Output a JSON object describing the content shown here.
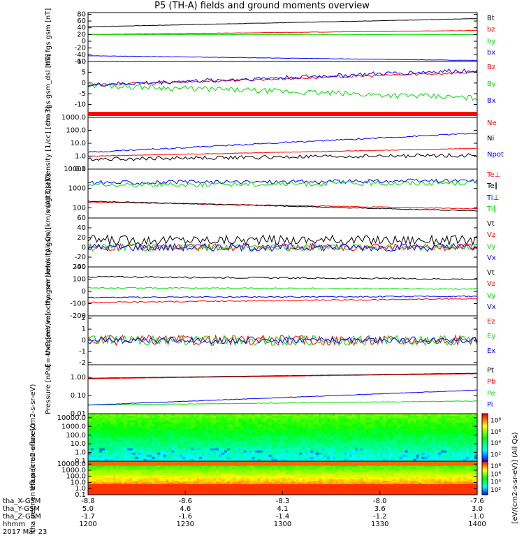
{
  "title": "P5 (TH-A) fields and ground moments overview",
  "colors": {
    "black": "#000000",
    "red": "#ff0000",
    "green": "#00dd00",
    "blue": "#0000ff"
  },
  "chart_data": [
    {
      "type": "line",
      "ylabel": "tha fgs gsm [nT]",
      "yticks": [
        "80",
        "60",
        "40",
        "20",
        "0",
        "-20",
        "-40",
        "-60"
      ],
      "ylim": [
        -60,
        85
      ],
      "series": [
        {
          "name": "Bt",
          "color": "black",
          "start": 43,
          "end": 67,
          "noise": 0.5
        },
        {
          "name": "bz",
          "color": "red",
          "start": 20,
          "end": 32,
          "noise": 0.5
        },
        {
          "name": "by",
          "color": "green",
          "start": 20,
          "end": 20,
          "noise": 0.6
        },
        {
          "name": "bx",
          "color": "blue",
          "start": -43,
          "end": -57,
          "noise": 0.5
        }
      ]
    },
    {
      "type": "line",
      "ylabel": "tha fgs gsm_dsl [nT]",
      "yticks": [
        "10",
        "5",
        "0",
        "-5",
        "-10"
      ],
      "ylim": [
        -16,
        10
      ],
      "series": [
        {
          "name": "Bz",
          "color": "red",
          "start": -1,
          "end": 5,
          "noise": 0.6
        },
        {
          "name": "By",
          "color": "green",
          "start": -1,
          "end": -7,
          "noise": 1.3
        },
        {
          "name": "Bx",
          "color": "blue",
          "start": -1,
          "end": 6,
          "noise": 1.0
        }
      ]
    },
    {
      "type": "line",
      "ylabel": "Density [1/cc] [cm-3]",
      "yticks": [
        "1000.0",
        "100.0",
        "10.0",
        "1.0",
        "0.1"
      ],
      "ylim": [
        0.1,
        1000
      ],
      "log": true,
      "series": [
        {
          "name": "Ne",
          "color": "red",
          "start": 1.0,
          "end": 4,
          "noise": 0.05
        },
        {
          "name": "Ni",
          "color": "black",
          "start": 0.6,
          "end": 1.2,
          "noise": 0.35
        },
        {
          "name": "Npot",
          "color": "blue",
          "start": 2,
          "end": 60,
          "noise": 0.12
        }
      ]
    },
    {
      "type": "line",
      "ylabel": "magt3 [eV]",
      "yticks": [
        "10000",
        "1000",
        "100"
      ],
      "ylim": [
        30,
        10000
      ],
      "log": true,
      "series": [
        {
          "name": "Te⊥",
          "color": "red",
          "start": 200,
          "end": 90,
          "noise": 0.05
        },
        {
          "name": "Te∥",
          "color": "black",
          "start": 220,
          "end": 70,
          "noise": 0.05
        },
        {
          "name": "Ti⊥",
          "color": "blue",
          "start": 2000,
          "end": 2500,
          "noise": 0.25
        },
        {
          "name": "Ti∥",
          "color": "green",
          "start": 1500,
          "end": 2000,
          "noise": 0.3
        }
      ]
    },
    {
      "type": "line",
      "ylabel": "tha peir velocity gsm [km/s (All Qs)]",
      "yticks": [
        "60",
        "40",
        "20",
        "0",
        "-20",
        "-40"
      ],
      "ylim": [
        -40,
        60
      ],
      "series": [
        {
          "name": "Vt",
          "color": "black",
          "start": 15,
          "end": 15,
          "noise": 10
        },
        {
          "name": "Vz",
          "color": "red",
          "start": 0,
          "end": 0,
          "noise": 7
        },
        {
          "name": "Vy",
          "color": "green",
          "start": 0,
          "end": 0,
          "noise": 7
        },
        {
          "name": "Vx",
          "color": "blue",
          "start": 0,
          "end": 0,
          "noise": 8
        }
      ]
    },
    {
      "type": "line",
      "ylabel": "tha peer velocity gsm [km/s (All Qs)]",
      "yticks": [
        "200",
        "100",
        "0",
        "-100",
        "-200"
      ],
      "ylim": [
        -200,
        200
      ],
      "series": [
        {
          "name": "Vt",
          "color": "black",
          "start": 120,
          "end": 100,
          "noise": 6
        },
        {
          "name": "Vz",
          "color": "red",
          "start": -90,
          "end": -60,
          "noise": 5
        },
        {
          "name": "Vy",
          "color": "green",
          "start": 30,
          "end": 20,
          "noise": 5
        },
        {
          "name": "Vx",
          "color": "blue",
          "start": -50,
          "end": -40,
          "noise": 5
        }
      ]
    },
    {
      "type": "line",
      "ylabel": "E=-VxB [mV/m]",
      "yticks": [
        "2",
        "1",
        "0",
        "-1",
        "-2"
      ],
      "ylim": [
        -2.2,
        2.2
      ],
      "series": [
        {
          "name": "Ez",
          "color": "red",
          "start": 0,
          "end": 0,
          "noise": 0.45
        },
        {
          "name": "Ey",
          "color": "green",
          "start": 0,
          "end": 0,
          "noise": 0.45
        },
        {
          "name": "Ex",
          "color": "blue",
          "start": 0,
          "end": 0,
          "noise": 0.3
        }
      ]
    },
    {
      "type": "line",
      "ylabel": "Pressure [nPa]",
      "yticks": [
        "1.00",
        "0.10",
        "0.01"
      ],
      "ylim": [
        0.01,
        5
      ],
      "log": true,
      "series": [
        {
          "name": "Pt",
          "color": "black",
          "start": 0.9,
          "end": 1.7,
          "noise": 0.01
        },
        {
          "name": "Pb",
          "color": "red",
          "start": 0.85,
          "end": 1.6,
          "noise": 0.01
        },
        {
          "name": "Pe",
          "color": "green",
          "start": 0.03,
          "end": 0.05,
          "noise": 0.03
        },
        {
          "name": "Pi",
          "color": "blue",
          "start": 0.03,
          "end": 0.2,
          "noise": 0.03
        }
      ]
    },
    {
      "type": "heatmap",
      "ylabel": "tha peir en eflux (cm2-s-sr-eV)",
      "yticks": [
        "10000.0",
        "1000.0",
        "100.0",
        "10.0",
        "1.0",
        "0.1"
      ],
      "ylim": [
        0.1,
        30000
      ],
      "log": true
    },
    {
      "type": "heatmap",
      "ylabel": "tha peer en eflux (cm2-s-sr-eV)",
      "yticks": [
        "10000.0",
        "1000.0",
        "100.0",
        "10.0",
        "1.0",
        "0.1"
      ],
      "ylim": [
        0.1,
        30000
      ],
      "log": true
    }
  ],
  "colorbar": {
    "label": "[eV/(cm2-s-sr-eV)] (All Qs)",
    "ticks_ion": [
      "10⁸",
      "10⁶",
      "10⁴",
      "10²"
    ],
    "ticks_electron": [
      "10⁸",
      "10⁶",
      "10⁴",
      "10²"
    ]
  },
  "xaxis": {
    "rows": [
      {
        "label": "tha_X-GSM",
        "values": [
          "-8.8",
          "-8.6",
          "-8.3",
          "-8.0",
          "-7.6"
        ]
      },
      {
        "label": "tha_Y-GSM",
        "values": [
          "5.0",
          "4.6",
          "4.1",
          "3.6",
          "3.0"
        ]
      },
      {
        "label": "tha_Z-GSM",
        "values": [
          "-1.7",
          "-1.6",
          "-1.4",
          "-1.2",
          "-1.0"
        ]
      },
      {
        "label": "hhmm",
        "values": [
          "1200",
          "1230",
          "1300",
          "1330",
          "1400"
        ]
      }
    ],
    "date": "2017 Mar 23"
  }
}
